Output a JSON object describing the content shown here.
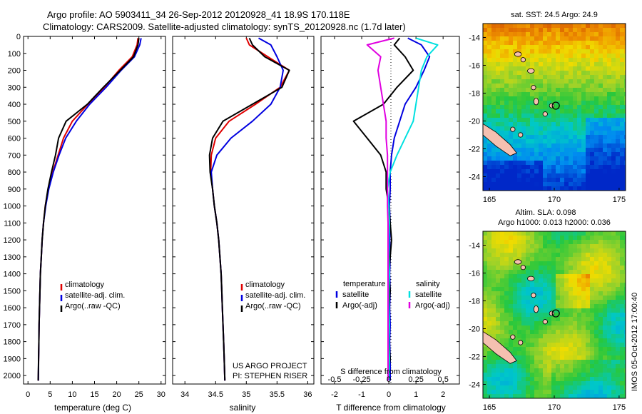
{
  "header": {
    "line1": "Argo profile: AO 5903411_34 26-Sep-2012 20120928_41 18.9S 170.118E",
    "line2": "Climatology: CARS2009. Satellite-adjusted climatology: synTS_20120928.nc (1.7d later)"
  },
  "colors": {
    "clim": "#e00000",
    "sat": "#0000e0",
    "argo": "#000000",
    "s_sat": "#00e0e0",
    "s_argo": "#e000e0"
  },
  "depth_axis": {
    "range": [
      0,
      2050
    ],
    "ticks": [
      "0",
      "100",
      "200",
      "300",
      "400",
      "500",
      "600",
      "700",
      "800",
      "900",
      "1000",
      "1100",
      "1200",
      "1300",
      "1400",
      "1500",
      "1600",
      "1700",
      "1800",
      "1900",
      "2000"
    ]
  },
  "chart_data": [
    {
      "type": "line",
      "xlabel": "temperature (deg C)",
      "xlim": [
        -1,
        31
      ],
      "ylim": [
        2050,
        0
      ],
      "xticks": [
        "0",
        "5",
        "10",
        "15",
        "20",
        "25",
        "30"
      ],
      "legend": [
        "climatology",
        "satellite-adj. clim.",
        "Argo(..raw -QC)"
      ],
      "series": [
        {
          "name": "climatology",
          "color": "clim",
          "x": [
            24.8,
            24.6,
            23.5,
            20.5,
            17.2,
            13.5,
            10.0,
            8.0,
            6.8,
            5.6,
            4.6,
            3.9,
            3.5,
            3.2,
            3.0,
            2.8,
            2.7,
            2.6,
            2.5,
            2.45,
            2.4,
            2.35
          ],
          "y": [
            10,
            50,
            120,
            200,
            300,
            400,
            500,
            600,
            700,
            800,
            900,
            1000,
            1100,
            1200,
            1300,
            1400,
            1500,
            1600,
            1700,
            1800,
            1900,
            2030
          ]
        },
        {
          "name": "satellite-adj. clim.",
          "color": "sat",
          "x": [
            25.5,
            25.2,
            24.0,
            21.0,
            17.6,
            13.9,
            10.9,
            8.5,
            7.0,
            5.7,
            4.7,
            4.0,
            3.5,
            3.2,
            3.0,
            2.8,
            2.7,
            2.6,
            2.5,
            2.45,
            2.4,
            2.35
          ],
          "y": [
            10,
            50,
            120,
            200,
            300,
            400,
            500,
            600,
            700,
            800,
            900,
            1000,
            1100,
            1200,
            1300,
            1400,
            1500,
            1600,
            1700,
            1800,
            1900,
            2030
          ]
        },
        {
          "name": "Argo(..raw -QC)",
          "color": "argo",
          "x": [
            25.0,
            24.8,
            23.8,
            20.8,
            17.0,
            13.4,
            8.6,
            6.9,
            6.2,
            5.3,
            4.5,
            3.9,
            3.5,
            3.2,
            3.0,
            2.8,
            2.7,
            2.6,
            2.5,
            2.45,
            2.4,
            2.3
          ],
          "y": [
            10,
            50,
            120,
            200,
            300,
            400,
            500,
            600,
            700,
            800,
            900,
            1000,
            1100,
            1200,
            1300,
            1400,
            1500,
            1600,
            1700,
            1800,
            1900,
            2030
          ]
        }
      ]
    },
    {
      "type": "line",
      "xlabel": "salinity",
      "xlim": [
        33.8,
        36.1
      ],
      "ylim": [
        2050,
        0
      ],
      "xticks": [
        "34",
        "34.5",
        "35",
        "35.5",
        "36"
      ],
      "legend": [
        "climatology",
        "satellite-adj. clim.",
        "Argo(..raw -QC)"
      ],
      "annotation": [
        "US ARGO PROJECT",
        "PI: STEPHEN RISER"
      ],
      "series": [
        {
          "name": "climatology",
          "color": "clim",
          "x": [
            35.0,
            35.05,
            35.35,
            35.7,
            35.55,
            35.15,
            34.72,
            34.5,
            34.43,
            34.42,
            34.45,
            34.48,
            34.52,
            34.55,
            34.57,
            34.59,
            34.6,
            34.61,
            34.62,
            34.63,
            34.64,
            34.65
          ],
          "y": [
            10,
            50,
            120,
            200,
            300,
            400,
            500,
            600,
            700,
            800,
            900,
            1000,
            1100,
            1200,
            1300,
            1400,
            1500,
            1600,
            1700,
            1800,
            1900,
            2030
          ]
        },
        {
          "name": "satellite-adj. clim.",
          "color": "sat",
          "x": [
            35.2,
            35.4,
            35.5,
            35.6,
            35.55,
            35.4,
            35.1,
            34.75,
            34.52,
            34.43,
            34.45,
            34.48,
            34.52,
            34.55,
            34.57,
            34.59,
            34.6,
            34.61,
            34.62,
            34.63,
            34.64,
            34.65
          ],
          "y": [
            10,
            50,
            120,
            200,
            300,
            400,
            500,
            600,
            700,
            800,
            900,
            1000,
            1100,
            1200,
            1300,
            1400,
            1500,
            1600,
            1700,
            1800,
            1900,
            2030
          ]
        },
        {
          "name": "Argo(..raw -QC)",
          "color": "argo",
          "x": [
            35.05,
            35.1,
            35.3,
            35.7,
            35.58,
            35.1,
            34.62,
            34.45,
            34.4,
            34.41,
            34.45,
            34.48,
            34.52,
            34.55,
            34.57,
            34.59,
            34.6,
            34.61,
            34.62,
            34.63,
            34.64,
            34.65
          ],
          "y": [
            10,
            50,
            120,
            200,
            300,
            400,
            500,
            600,
            700,
            800,
            900,
            1000,
            1100,
            1200,
            1300,
            1400,
            1500,
            1600,
            1700,
            1800,
            1900,
            2030
          ]
        }
      ]
    },
    {
      "type": "line",
      "xlabel": "T difference from climatology",
      "xlabel_top": "S difference from climatology",
      "xlim": [
        -2.5,
        2.6
      ],
      "ylim": [
        2050,
        0
      ],
      "xticks": [
        "-2",
        "-1",
        "0",
        "1",
        "2"
      ],
      "xticks_top": [
        "-0.5",
        "-0.25",
        "0",
        "0.25",
        "0.5"
      ],
      "legend_temperature": {
        "title": "temperature",
        "items": [
          "satellite",
          "Argo(-adj)"
        ]
      },
      "legend_salinity": {
        "title": "salinity",
        "items": [
          "satellite",
          "Argo(-adj)"
        ]
      },
      "series": [
        {
          "name": "satellite",
          "group": "temperature",
          "color": "sat",
          "x": [
            0.7,
            1.2,
            1.5,
            1.3,
            1.0,
            0.6,
            0.4,
            0.2,
            0.1,
            0.05,
            0.05,
            0.02,
            0.05,
            0.03,
            0.05,
            0.03,
            0.05,
            0.03,
            0.05,
            0.03,
            0.05,
            0.05
          ],
          "y": [
            10,
            50,
            120,
            200,
            300,
            400,
            500,
            600,
            700,
            800,
            900,
            1000,
            1100,
            1200,
            1300,
            1400,
            1500,
            1600,
            1700,
            1800,
            1900,
            2030
          ]
        },
        {
          "name": "Argo(-adj)",
          "group": "temperature",
          "color": "argo",
          "x": [
            0.4,
            0.2,
            0.6,
            0.9,
            0.3,
            -0.2,
            -1.3,
            -0.8,
            -0.3,
            -0.1,
            -0.1,
            0.0,
            0.05,
            0.1,
            0.05,
            0.0,
            0.05,
            0.0,
            0.02,
            0.0,
            0.05,
            -0.05
          ],
          "y": [
            10,
            50,
            120,
            200,
            300,
            400,
            500,
            600,
            700,
            800,
            900,
            1000,
            1100,
            1200,
            1300,
            1400,
            1500,
            1600,
            1700,
            1800,
            1900,
            2030
          ]
        },
        {
          "name": "satellite",
          "group": "salinity",
          "color": "s_sat",
          "x": [
            1.0,
            1.8,
            1.4,
            1.2,
            1.1,
            1.0,
            0.9,
            0.6,
            0.3,
            0.05,
            -0.05,
            0.0,
            0.02,
            0.0,
            0.0,
            0.02,
            0.0,
            0.0,
            0.02,
            0.0,
            0.02,
            0.0
          ],
          "y": [
            10,
            50,
            120,
            200,
            300,
            400,
            500,
            600,
            700,
            800,
            900,
            1000,
            1100,
            1200,
            1300,
            1400,
            1500,
            1600,
            1700,
            1800,
            1900,
            2030
          ]
        },
        {
          "name": "Argo(-adj)",
          "group": "salinity",
          "color": "s_argo",
          "x": [
            0.2,
            -0.8,
            -0.3,
            -0.4,
            -0.3,
            -0.2,
            -0.1,
            -0.1,
            -0.05,
            -0.05,
            -0.05,
            -0.05,
            -0.03,
            -0.03,
            -0.03,
            -0.03,
            -0.03,
            -0.03,
            -0.03,
            -0.03,
            -0.03,
            -0.03
          ],
          "y": [
            10,
            50,
            120,
            200,
            300,
            400,
            500,
            600,
            700,
            800,
            900,
            1000,
            1100,
            1200,
            1300,
            1400,
            1500,
            1600,
            1700,
            1800,
            1900,
            2030
          ]
        }
      ]
    },
    {
      "type": "heatmap",
      "title": "sat. SST: 24.5  Argo: 24.9",
      "xticks": [
        "165",
        "170",
        "175"
      ],
      "yticks": [
        "-14",
        "-16",
        "-18",
        "-20",
        "-22",
        "-24"
      ],
      "xlim": [
        164.5,
        175.5
      ],
      "ylim": [
        -25,
        -13
      ],
      "float_position": [
        170.118,
        -18.9
      ]
    },
    {
      "type": "heatmap",
      "title_line1": "Altim. SLA: 0.098",
      "title_line2": "Argo h1000: 0.013 h2000: 0.036",
      "xticks": [
        "165",
        "170",
        "175"
      ],
      "yticks": [
        "-14",
        "-16",
        "-18",
        "-20",
        "-22",
        "-24"
      ],
      "xlim": [
        164.5,
        175.5
      ],
      "ylim": [
        -25,
        -13
      ],
      "float_position": [
        170.118,
        -18.9
      ]
    }
  ],
  "footer": {
    "stamp": "IMOS 05-Oct-2012 17:00:40"
  }
}
